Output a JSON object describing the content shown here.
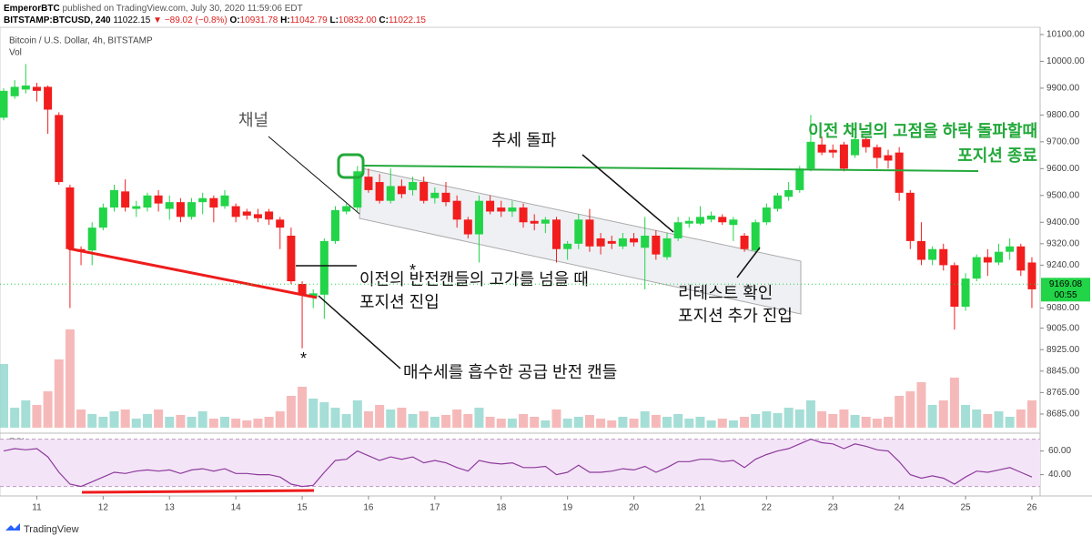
{
  "header": {
    "author": "EmperorBTC",
    "published": "published on TradingView.com, July 30, 2020 11:59:06 EDT",
    "symbol": "BITSTAMP:BTCUSD, 240",
    "price": "11022.15",
    "change": "▼ −89.02 (−0.8%)",
    "ohlc": [
      {
        "key": "O:",
        "value": "10931.78"
      },
      {
        "key": "H:",
        "value": "11042.79"
      },
      {
        "key": "L:",
        "value": "10832.00"
      },
      {
        "key": "C:",
        "value": "11022.15"
      }
    ]
  },
  "footer": "TradingView",
  "chart_data": {
    "type": "candlestick",
    "title": "Bitcoin / U.S. Dollar, 4h, BITSTAMP",
    "up_color": "#22d448",
    "down_color": "#f21d1d",
    "open": [
      9790,
      9870,
      9895,
      9905,
      9905,
      9800,
      9530,
      9300,
      9295,
      9380,
      9455,
      9515,
      9450,
      9455,
      9500,
      9450,
      9475,
      9420,
      9475,
      9490,
      9460,
      9460,
      9440,
      9430,
      9440,
      9410,
      9350,
      9170,
      9120,
      9130,
      9330,
      9440,
      9455,
      9570,
      9550,
      9480,
      9535,
      9520,
      9550,
      9490,
      9510,
      9480,
      9410,
      9355,
      9480,
      9455,
      9440,
      9455,
      9405,
      9395,
      9410,
      9300,
      9320,
      9410,
      9340,
      9330,
      9310,
      9340,
      9305,
      9350,
      9270,
      9340,
      9395,
      9395,
      9410,
      9420,
      9390,
      9350,
      9295,
      9400,
      9450,
      9495,
      9520,
      9600,
      9690,
      9670,
      9690,
      9650,
      9710,
      9680,
      9650,
      9660,
      9510,
      9330,
      9260,
      9300,
      9240,
      9085,
      9190,
      9270,
      9250,
      9290,
      9310,
      9250
    ],
    "high": [
      9900,
      9930,
      9990,
      9920,
      9910,
      9810,
      9540,
      9310,
      9400,
      9470,
      9540,
      9560,
      9480,
      9510,
      9520,
      9500,
      9490,
      9490,
      9510,
      9500,
      9520,
      9470,
      9450,
      9450,
      9450,
      9420,
      9380,
      9180,
      9150,
      9340,
      9460,
      9470,
      9610,
      9600,
      9580,
      9600,
      9560,
      9570,
      9570,
      9530,
      9550,
      9500,
      9420,
      9500,
      9500,
      9480,
      9480,
      9470,
      9430,
      9420,
      9420,
      9330,
      9430,
      9450,
      9360,
      9350,
      9360,
      9360,
      9420,
      9370,
      9360,
      9420,
      9420,
      9460,
      9440,
      9430,
      9420,
      9360,
      9410,
      9470,
      9510,
      9550,
      9610,
      9800,
      9720,
      9690,
      9700,
      9720,
      9720,
      9690,
      9670,
      9680,
      9520,
      9400,
      9310,
      9320,
      9250,
      9210,
      9280,
      9300,
      9320,
      9340,
      9320,
      9270
    ],
    "low": [
      9780,
      9860,
      9880,
      9850,
      9730,
      9540,
      9080,
      9240,
      9240,
      9370,
      9440,
      9440,
      9420,
      9440,
      9440,
      9410,
      9400,
      9410,
      9430,
      9400,
      9450,
      9400,
      9410,
      9400,
      9390,
      9300,
      9170,
      8930,
      9080,
      9040,
      9320,
      9430,
      9440,
      9510,
      9470,
      9470,
      9490,
      9500,
      9470,
      9470,
      9460,
      9380,
      9340,
      9250,
      9430,
      9420,
      9420,
      9380,
      9370,
      9360,
      9250,
      9260,
      9300,
      9290,
      9280,
      9300,
      9300,
      9310,
      9150,
      9260,
      9260,
      9330,
      9380,
      9390,
      9400,
      9390,
      9330,
      9290,
      9280,
      9390,
      9440,
      9480,
      9510,
      9590,
      9650,
      9640,
      9590,
      9640,
      9660,
      9600,
      9600,
      9480,
      9300,
      9240,
      9240,
      9220,
      9000,
      9070,
      9180,
      9200,
      9240,
      9260,
      9200,
      9080
    ],
    "close": [
      9890,
      9905,
      9910,
      9890,
      9820,
      9550,
      9300,
      9290,
      9380,
      9455,
      9520,
      9455,
      9460,
      9500,
      9470,
      9475,
      9420,
      9475,
      9490,
      9455,
      9500,
      9420,
      9425,
      9415,
      9410,
      9380,
      9180,
      9130,
      9135,
      9330,
      9445,
      9460,
      9590,
      9520,
      9480,
      9535,
      9505,
      9550,
      9480,
      9510,
      9475,
      9410,
      9355,
      9480,
      9440,
      9440,
      9455,
      9400,
      9395,
      9410,
      9300,
      9320,
      9410,
      9310,
      9310,
      9320,
      9340,
      9325,
      9350,
      9280,
      9340,
      9400,
      9405,
      9420,
      9425,
      9400,
      9410,
      9300,
      9400,
      9455,
      9500,
      9520,
      9600,
      9700,
      9660,
      9660,
      9600,
      9710,
      9680,
      9640,
      9630,
      9510,
      9330,
      9260,
      9300,
      9240,
      9085,
      9190,
      9270,
      9250,
      9290,
      9310,
      9220,
      9150
    ],
    "ylim": [
      8634,
      10127
    ],
    "yticks": [
      {
        "value": 10100,
        "label": "10100.00"
      },
      {
        "value": 10000,
        "label": "10000.00"
      },
      {
        "value": 9900,
        "label": "9900.00"
      },
      {
        "value": 9800,
        "label": "9800.00"
      },
      {
        "value": 9700,
        "label": "9700.00"
      },
      {
        "value": 9600,
        "label": "9600.00"
      },
      {
        "value": 9500,
        "label": "9500.00"
      },
      {
        "value": 9400,
        "label": "9400.00"
      },
      {
        "value": 9320,
        "label": "9320.00"
      },
      {
        "value": 9240,
        "label": "9240.00"
      },
      {
        "value": 9080,
        "label": "9080.00"
      },
      {
        "value": 9005,
        "label": "9005.00"
      },
      {
        "value": 8925,
        "label": "8925.00"
      },
      {
        "value": 8845,
        "label": "8845.00"
      },
      {
        "value": 8765,
        "label": "8765.00"
      },
      {
        "value": 8685,
        "label": "8685.00"
      }
    ],
    "xticks": [
      {
        "value": 3,
        "label": "11"
      },
      {
        "value": 9,
        "label": "12"
      },
      {
        "value": 15,
        "label": "13"
      },
      {
        "value": 21,
        "label": "14"
      },
      {
        "value": 27,
        "label": "15"
      },
      {
        "value": 33,
        "label": "16"
      },
      {
        "value": 39,
        "label": "17"
      },
      {
        "value": 45,
        "label": "18"
      },
      {
        "value": 51,
        "label": "19"
      },
      {
        "value": 57,
        "label": "20"
      },
      {
        "value": 63,
        "label": "21"
      },
      {
        "value": 69,
        "label": "22"
      },
      {
        "value": 75,
        "label": "23"
      },
      {
        "value": 81,
        "label": "24"
      },
      {
        "value": 87,
        "label": "25"
      },
      {
        "value": 93,
        "label": "26"
      }
    ],
    "last_price": 9169.08,
    "countdown": "00:55",
    "last_color": "#22d448",
    "volume": {
      "name": "Vol",
      "up_color": "#8fd6cc",
      "down_color": "#f4a7a7",
      "values": [
        70,
        22,
        30,
        25,
        40,
        75,
        108,
        20,
        15,
        12,
        18,
        20,
        10,
        15,
        20,
        12,
        14,
        12,
        18,
        10,
        12,
        10,
        8,
        10,
        12,
        18,
        35,
        45,
        32,
        28,
        22,
        15,
        30,
        18,
        25,
        20,
        22,
        15,
        18,
        12,
        14,
        20,
        15,
        22,
        12,
        10,
        10,
        15,
        12,
        8,
        20,
        10,
        12,
        14,
        10,
        8,
        12,
        10,
        18,
        14,
        12,
        15,
        10,
        12,
        8,
        10,
        8,
        12,
        15,
        18,
        16,
        22,
        20,
        30,
        18,
        15,
        20,
        14,
        12,
        10,
        12,
        35,
        40,
        50,
        25,
        30,
        55,
        25,
        20,
        15,
        18,
        12,
        20,
        30
      ]
    },
    "rsi": {
      "name": "RSI",
      "color": "#8e3a9d",
      "ylim": [
        22,
        72
      ],
      "band": [
        30,
        70
      ],
      "yticks": [
        {
          "value": 60,
          "label": "60.00"
        },
        {
          "value": 40,
          "label": "40.00"
        }
      ],
      "values": [
        60,
        62,
        61,
        62,
        55,
        42,
        32,
        30,
        34,
        38,
        42,
        41,
        43,
        44,
        43,
        44,
        41,
        44,
        45,
        43,
        45,
        41,
        41,
        40,
        40,
        38,
        32,
        30,
        31,
        42,
        52,
        53,
        60,
        56,
        52,
        55,
        53,
        55,
        50,
        52,
        50,
        46,
        43,
        52,
        50,
        49,
        50,
        46,
        46,
        47,
        40,
        42,
        48,
        42,
        42,
        43,
        45,
        44,
        47,
        42,
        46,
        51,
        51,
        53,
        53,
        51,
        52,
        46,
        53,
        57,
        60,
        62,
        66,
        70,
        67,
        66,
        62,
        66,
        64,
        61,
        60,
        51,
        40,
        37,
        39,
        37,
        32,
        38,
        43,
        42,
        44,
        46,
        42,
        38
      ]
    },
    "annotations": [
      "채널",
      "추세 돌파",
      "이전 채널의 고점을 하락 돌파할때",
      "포지션 종료",
      "이전의 반전캔들의 고가를 넘을 때",
      "포지션 진입",
      "리테스트 확인",
      "포지션 추가 진입",
      "매수세를 흡수한 공급 반전 캔들",
      "*",
      "*"
    ]
  }
}
